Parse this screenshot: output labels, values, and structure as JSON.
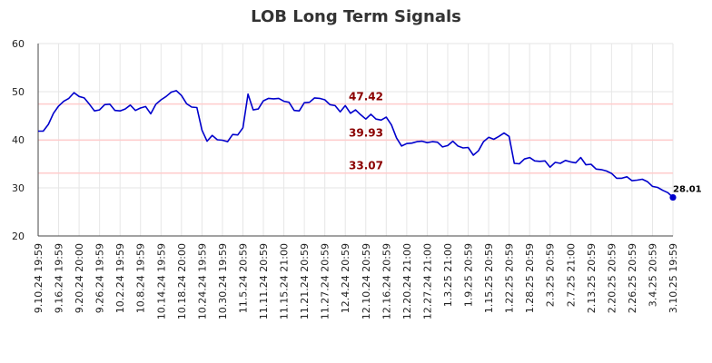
{
  "chart_data": {
    "type": "line",
    "title": "LOB Long Term Signals",
    "xlabel": "",
    "ylabel": "",
    "ylim": [
      20,
      60
    ],
    "yticks": [
      20,
      30,
      40,
      50,
      60
    ],
    "grid": true,
    "line_color": "#0000cc",
    "ref_color": "#ffcccc",
    "ref_label_color": "#8b0000",
    "xtick_labels": [
      "9.10.24 19:59",
      "9.16.24 19:59",
      "9.20.24 20:00",
      "9.26.24 19:59",
      "10.2.24 19:59",
      "10.8.24 19:59",
      "10.14.24 19:59",
      "10.18.24 20:00",
      "10.24.24 19:59",
      "10.30.24 19:59",
      "11.5.24 20:59",
      "11.11.24 20:59",
      "11.15.24 21:00",
      "11.21.24 20:59",
      "11.27.24 20:59",
      "12.4.24 20:59",
      "12.10.24 20:59",
      "12.16.24 20:59",
      "12.20.24 21:00",
      "12.27.24 21:00",
      "1.3.25 21:00",
      "1.9.25 20:59",
      "1.15.25 20:59",
      "1.22.25 20:59",
      "1.28.25 20:59",
      "2.3.25 20:59",
      "2.7.25 21:00",
      "2.13.25 20:59",
      "2.20.25 20:59",
      "2.26.25 20:59",
      "3.4.25 20:59",
      "3.10.25 19:59"
    ],
    "reference_lines": [
      {
        "value": 47.42,
        "label": "47.42"
      },
      {
        "value": 39.93,
        "label": "39.93"
      },
      {
        "value": 33.07,
        "label": "33.07"
      }
    ],
    "last_value": {
      "value": 28.01,
      "label": "28.01"
    },
    "values": [
      41.8,
      41.8,
      43.2,
      45.5,
      47.0,
      48.0,
      48.6,
      49.8,
      49.0,
      48.7,
      47.4,
      46.0,
      46.2,
      47.3,
      47.4,
      46.1,
      46.0,
      46.4,
      47.2,
      46.1,
      46.6,
      46.9,
      45.4,
      47.4,
      48.3,
      49.0,
      49.9,
      50.2,
      49.2,
      47.5,
      46.8,
      46.7,
      42.0,
      39.7,
      40.9,
      40.0,
      39.9,
      39.6,
      41.1,
      41.0,
      42.5,
      49.5,
      46.2,
      46.4,
      48.1,
      48.6,
      48.5,
      48.6,
      48.0,
      47.8,
      46.1,
      46.0,
      47.7,
      47.8,
      48.7,
      48.6,
      48.3,
      47.3,
      47.1,
      45.8,
      47.1,
      45.5,
      46.2,
      45.2,
      44.3,
      45.3,
      44.3,
      44.1,
      44.7,
      43.1,
      40.4,
      38.7,
      39.2,
      39.3,
      39.6,
      39.7,
      39.4,
      39.6,
      39.5,
      38.5,
      38.8,
      39.7,
      38.7,
      38.3,
      38.4,
      36.8,
      37.7,
      39.6,
      40.5,
      40.1,
      40.7,
      41.4,
      40.7,
      35.1,
      35.0,
      36.0,
      36.3,
      35.6,
      35.5,
      35.6,
      34.3,
      35.3,
      35.1,
      35.7,
      35.4,
      35.2,
      36.3,
      34.8,
      34.9,
      33.9,
      33.8,
      33.5,
      33.0,
      32.0,
      32.0,
      32.3,
      31.5,
      31.6,
      31.8,
      31.3,
      30.3,
      30.1,
      29.5,
      29.0,
      28.01
    ]
  }
}
